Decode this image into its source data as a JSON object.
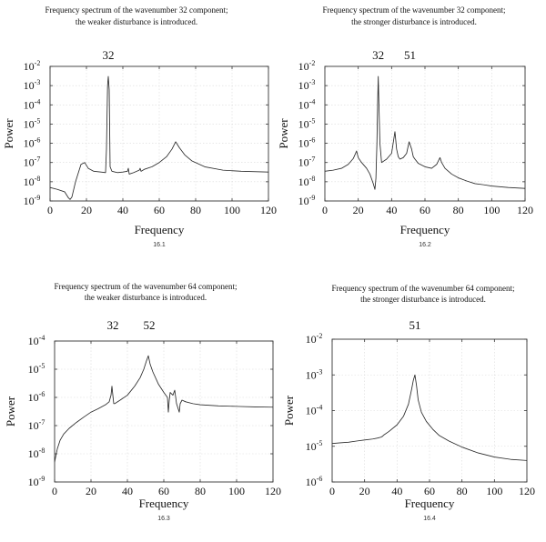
{
  "chart_data": [
    {
      "type": "line",
      "title_lines": [
        "Frequency spectrum of the wavenumber 32 component;",
        "the weaker disturbance is introduced."
      ],
      "xlabel": "Frequency",
      "ylabel": "Power",
      "caption": "16.1",
      "xlim": [
        0,
        120
      ],
      "x_ticks": [
        0,
        20,
        40,
        60,
        80,
        100,
        120
      ],
      "y_scale": "log",
      "ylim": [
        1e-09,
        0.01
      ],
      "y_tick_exponents": [
        -9,
        -8,
        -7,
        -6,
        -5,
        -4,
        -3,
        -2
      ],
      "grid": true,
      "annotations": [
        {
          "text": "32",
          "x": 32
        }
      ],
      "series": [
        {
          "x": [
            0,
            4,
            8,
            10,
            11,
            12,
            14,
            17,
            19,
            21,
            24,
            28,
            30.5,
            31,
            31.6,
            32,
            32.5,
            33,
            34,
            37,
            40,
            42.5,
            43,
            43.5,
            46,
            49,
            49.5,
            50,
            52,
            56,
            60,
            64,
            67,
            69,
            71,
            74,
            78,
            85,
            95,
            105,
            120
          ],
          "y": [
            5e-09,
            4e-09,
            3e-09,
            1.5e-09,
            1.2e-09,
            1.6e-09,
            1e-08,
            8e-08,
            1e-07,
            5e-08,
            3.5e-08,
            3.2e-08,
            3e-08,
            5e-07,
            0.001,
            0.003,
            0.0006,
            6e-08,
            3.5e-08,
            3e-08,
            3.2e-08,
            3.5e-08,
            5e-08,
            2.5e-08,
            3e-08,
            4e-08,
            5e-08,
            3.5e-08,
            4.5e-08,
            6e-08,
            1e-07,
            2e-07,
            5e-07,
            1.2e-06,
            6e-07,
            2.5e-07,
            1.2e-07,
            6e-08,
            4e-08,
            3.5e-08,
            3.2e-08
          ]
        }
      ]
    },
    {
      "type": "line",
      "title_lines": [
        "Frequency spectrum of the wavenumber 32 component;",
        "the stronger disturbance is introduced."
      ],
      "xlabel": "Frequency",
      "ylabel": "Power",
      "caption": "16.2",
      "xlim": [
        0,
        120
      ],
      "x_ticks": [
        0,
        20,
        40,
        60,
        80,
        100,
        120
      ],
      "y_scale": "log",
      "ylim": [
        1e-09,
        0.01
      ],
      "y_tick_exponents": [
        -9,
        -8,
        -7,
        -6,
        -5,
        -4,
        -3,
        -2
      ],
      "grid": true,
      "annotations": [
        {
          "text": "32",
          "x": 32
        },
        {
          "text": "51",
          "x": 51
        }
      ],
      "series": [
        {
          "x": [
            0,
            5,
            10,
            14,
            17,
            18,
            19,
            20,
            22,
            25,
            27,
            29,
            30,
            30.6,
            31.2,
            31.6,
            32,
            32.4,
            33,
            34,
            37,
            40,
            42,
            43,
            44,
            45,
            47,
            49,
            50.5,
            52,
            53,
            54,
            56,
            60,
            64,
            67,
            68,
            69,
            70,
            72,
            76,
            80,
            85,
            90,
            95,
            100,
            110,
            120
          ],
          "y": [
            3.5e-08,
            4e-08,
            5e-08,
            8e-08,
            1.6e-07,
            2.5e-07,
            4e-07,
            1.8e-07,
            1e-07,
            5e-08,
            2.5e-08,
            8e-09,
            4e-09,
            1.5e-08,
            1e-06,
            0.0001,
            0.003,
            0.0001,
            1e-06,
            1e-07,
            1.5e-07,
            3e-07,
            4e-06,
            5e-07,
            2e-07,
            1.5e-07,
            1.8e-07,
            3e-07,
            1.2e-06,
            5e-07,
            2e-07,
            1.5e-07,
            9e-08,
            6e-08,
            5e-08,
            8e-08,
            1.2e-07,
            1.8e-07,
            1e-07,
            5e-08,
            2.5e-08,
            1.6e-08,
            1.1e-08,
            8e-09,
            7e-09,
            6e-09,
            5e-09,
            4.5e-09
          ]
        }
      ]
    },
    {
      "type": "line",
      "title_lines": [
        "Frequency spectrum of the wavenumber 64 component;",
        "the weaker disturbance is introduced."
      ],
      "xlabel": "Frequency",
      "ylabel": "Power",
      "caption": "16.3",
      "xlim": [
        0,
        120
      ],
      "x_ticks": [
        0,
        20,
        40,
        60,
        80,
        100,
        120
      ],
      "y_scale": "log",
      "ylim": [
        1e-09,
        0.0001
      ],
      "y_tick_exponents": [
        -9,
        -8,
        -7,
        -6,
        -5,
        -4
      ],
      "grid": true,
      "annotations": [
        {
          "text": "32",
          "x": 32
        },
        {
          "text": "52",
          "x": 52
        }
      ],
      "series": [
        {
          "x": [
            0,
            0.6,
            1.5,
            3,
            5,
            8,
            12,
            16,
            20,
            24,
            28,
            30,
            31,
            31.5,
            32,
            32.5,
            33,
            36,
            40,
            44,
            47,
            49,
            50.5,
            51.5,
            52.5,
            54,
            57,
            60,
            62,
            62.5,
            63,
            63.5,
            65,
            66,
            67,
            68.5,
            69,
            70,
            72,
            76,
            80,
            90,
            100,
            110,
            120
          ],
          "y": [
            5e-09,
            8e-09,
            1.5e-08,
            3e-08,
            5e-08,
            8e-08,
            1.3e-07,
            2e-07,
            3e-07,
            4e-07,
            5.5e-07,
            7e-07,
            1.2e-06,
            2.5e-06,
            1.2e-06,
            6e-07,
            6e-07,
            8e-07,
            1.2e-06,
            2.5e-06,
            5e-06,
            1e-05,
            2e-05,
            3e-05,
            1.5e-05,
            8e-06,
            3e-06,
            1.5e-06,
            1e-06,
            3e-07,
            8e-07,
            1.5e-06,
            1.2e-06,
            1.8e-06,
            6e-07,
            3e-07,
            6e-07,
            8e-07,
            7e-07,
            6e-07,
            5.5e-07,
            5e-07,
            4.8e-07,
            4.6e-07,
            4.5e-07
          ]
        }
      ]
    },
    {
      "type": "line",
      "title_lines": [
        "Frequency spectrum of the wavenumber 64 component;",
        "the stronger disturbance is introduced."
      ],
      "xlabel": "Frequency",
      "ylabel": "Power",
      "caption": "16.4",
      "xlim": [
        0,
        120
      ],
      "x_ticks": [
        0,
        20,
        40,
        60,
        80,
        100,
        120
      ],
      "y_scale": "log",
      "ylim": [
        1e-06,
        0.01
      ],
      "y_tick_exponents": [
        -6,
        -5,
        -4,
        -3,
        -2
      ],
      "grid": true,
      "annotations": [
        {
          "text": "51",
          "x": 51
        }
      ],
      "series": [
        {
          "x": [
            0,
            5,
            10,
            15,
            20,
            25,
            28,
            30,
            31,
            32,
            35,
            40,
            44,
            47,
            49,
            50,
            51,
            52,
            53,
            55,
            58,
            62,
            66,
            72,
            80,
            90,
            100,
            110,
            120
          ],
          "y": [
            1.2e-05,
            1.25e-05,
            1.3e-05,
            1.4e-05,
            1.5e-05,
            1.6e-05,
            1.7e-05,
            1.8e-05,
            1.9e-05,
            2.1e-05,
            2.6e-05,
            4e-05,
            7e-05,
            0.00015,
            0.0004,
            0.0007,
            0.001,
            0.0005,
            0.0002,
            9e-05,
            5e-05,
            3e-05,
            2e-05,
            1.4e-05,
            9.5e-06,
            6.5e-06,
            5e-06,
            4.3e-06,
            4e-06
          ]
        }
      ]
    }
  ]
}
